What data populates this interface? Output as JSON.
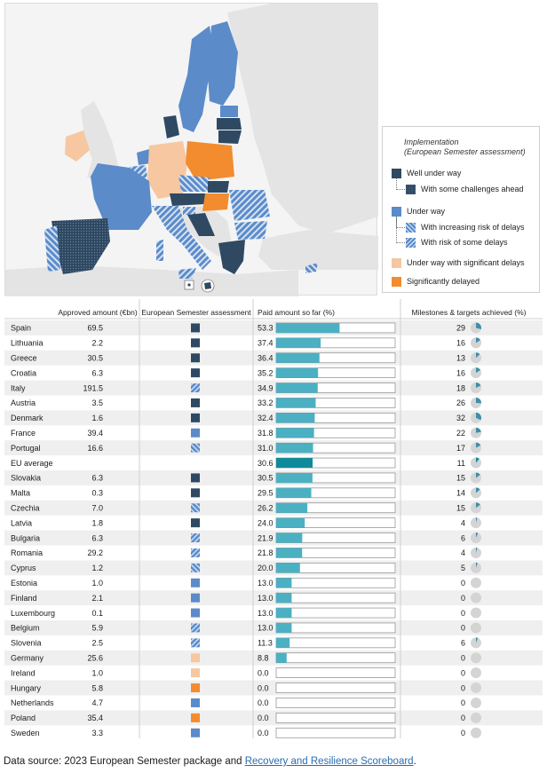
{
  "colors": {
    "well": "#2f4963",
    "under": "#5b8bc9",
    "sig": "#f6c7a0",
    "delayed": "#f28c2e",
    "bar": "#4ab0c2",
    "bar_avg": "#0e8a9a",
    "avg_text": "#2aa1b3",
    "pie_bg": "#d4d4d4",
    "pie_fill": "#3f8fa8"
  },
  "legend": {
    "title_line1": "Implementation",
    "title_line2": "(European Semester assessment)",
    "items": [
      {
        "key": "well",
        "label": "Well under way"
      },
      {
        "key": "well_hatch",
        "label": "With some challenges ahead"
      },
      {
        "key": "under",
        "label": "Under way"
      },
      {
        "key": "under_hatch1",
        "label": "With increasing risk of delays"
      },
      {
        "key": "under_hatch2",
        "label": "With risk of some delays"
      },
      {
        "key": "sig",
        "label": "Under way with significant delays"
      },
      {
        "key": "delayed",
        "label": "Significantly delayed"
      }
    ]
  },
  "chart_data": {
    "type": "table",
    "columns": [
      "Approved amount (€bn)",
      "European Semester assessment",
      "Paid amount so far (%)",
      "Milestones & targets achieved (%)"
    ],
    "paid_xlim": [
      0,
      100
    ],
    "rows": [
      {
        "country": "Spain",
        "approved": "69.5",
        "status": "well",
        "paid": 53.3,
        "milestones": 29
      },
      {
        "country": "Lithuania",
        "approved": "2.2",
        "status": "well",
        "paid": 37.4,
        "milestones": 16
      },
      {
        "country": "Greece",
        "approved": "30.5",
        "status": "well",
        "paid": 36.4,
        "milestones": 13
      },
      {
        "country": "Croatia",
        "approved": "6.3",
        "status": "well",
        "paid": 35.2,
        "milestones": 16
      },
      {
        "country": "Italy",
        "approved": "191.5",
        "status": "under_hatch1",
        "paid": 34.9,
        "milestones": 18
      },
      {
        "country": "Austria",
        "approved": "3.5",
        "status": "well",
        "paid": 33.2,
        "milestones": 26
      },
      {
        "country": "Denmark",
        "approved": "1.6",
        "status": "well",
        "paid": 32.4,
        "milestones": 32
      },
      {
        "country": "France",
        "approved": "39.4",
        "status": "under",
        "paid": 31.8,
        "milestones": 22
      },
      {
        "country": "Portugal",
        "approved": "16.6",
        "status": "under_hatch2",
        "paid": 31.0,
        "milestones": 17
      },
      {
        "country": "EU average",
        "approved": "",
        "status": "",
        "paid": 30.6,
        "milestones": 11,
        "avg": true
      },
      {
        "country": "Slovakia",
        "approved": "6.3",
        "status": "well",
        "paid": 30.5,
        "milestones": 15
      },
      {
        "country": "Malta",
        "approved": "0.3",
        "status": "well",
        "paid": 29.5,
        "milestones": 14
      },
      {
        "country": "Czechia",
        "approved": "7.0",
        "status": "under_hatch2",
        "paid": 26.2,
        "milestones": 15
      },
      {
        "country": "Latvia",
        "approved": "1.8",
        "status": "well",
        "paid": 24.0,
        "milestones": 4
      },
      {
        "country": "Bulgaria",
        "approved": "6.3",
        "status": "under_hatch1",
        "paid": 21.9,
        "milestones": 6
      },
      {
        "country": "Romania",
        "approved": "29.2",
        "status": "under_hatch1",
        "paid": 21.8,
        "milestones": 4
      },
      {
        "country": "Cyprus",
        "approved": "1.2",
        "status": "under_hatch2",
        "paid": 20.0,
        "milestones": 5
      },
      {
        "country": "Estonia",
        "approved": "1.0",
        "status": "under",
        "paid": 13.0,
        "milestones": 0
      },
      {
        "country": "Finland",
        "approved": "2.1",
        "status": "under",
        "paid": 13.0,
        "milestones": 0
      },
      {
        "country": "Luxembourg",
        "approved": "0.1",
        "status": "under",
        "paid": 13.0,
        "milestones": 0
      },
      {
        "country": "Belgium",
        "approved": "5.9",
        "status": "under_hatch1",
        "paid": 13.0,
        "milestones": 0
      },
      {
        "country": "Slovenia",
        "approved": "2.5",
        "status": "under_hatch1",
        "paid": 11.3,
        "milestones": 6
      },
      {
        "country": "Germany",
        "approved": "25.6",
        "status": "sig",
        "paid": 8.8,
        "milestones": 0
      },
      {
        "country": "Ireland",
        "approved": "1.0",
        "status": "sig",
        "paid": 0.0,
        "milestones": 0
      },
      {
        "country": "Hungary",
        "approved": "5.8",
        "status": "delayed",
        "paid": 0.0,
        "milestones": 0
      },
      {
        "country": "Netherlands",
        "approved": "4.7",
        "status": "under",
        "paid": 0.0,
        "milestones": 0
      },
      {
        "country": "Poland",
        "approved": "35.4",
        "status": "delayed",
        "paid": 0.0,
        "milestones": 0
      },
      {
        "country": "Sweden",
        "approved": "3.3",
        "status": "under",
        "paid": 0.0,
        "milestones": 0
      }
    ]
  },
  "footer": {
    "prefix": "Data source: 2023 European Semester package and ",
    "link": "Recovery and Resilience Scoreboard",
    "suffix": "."
  }
}
